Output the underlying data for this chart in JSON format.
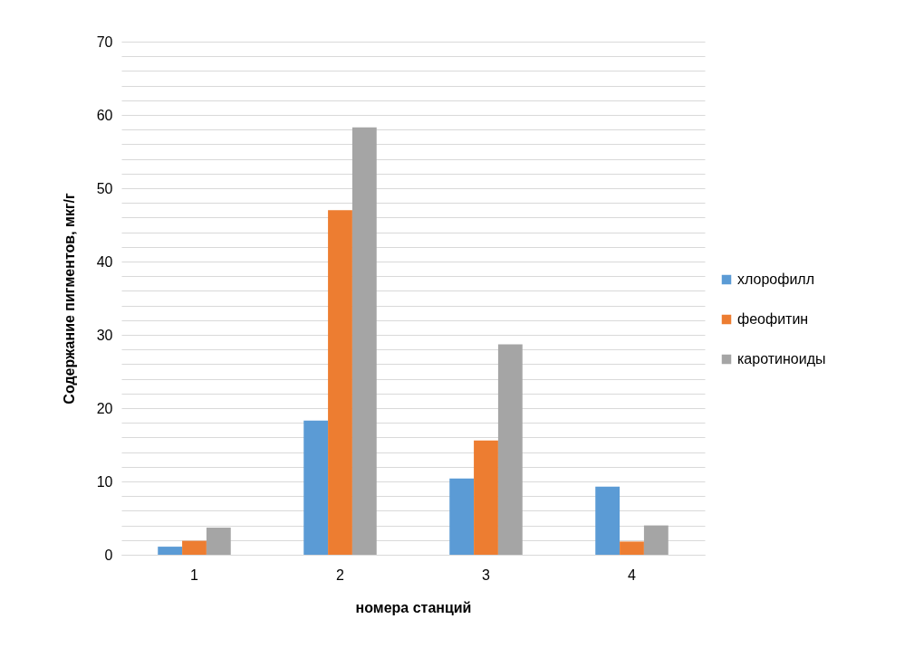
{
  "chart_data": {
    "type": "bar",
    "xlabel": "номера станций",
    "ylabel": "Содержание пигментов, мкг/г",
    "categories": [
      "1",
      "2",
      "3",
      "4"
    ],
    "series": [
      {
        "name": "хлорофилл",
        "color": "#5b9bd5",
        "values": [
          1.1,
          18.3,
          10.4,
          9.3
        ]
      },
      {
        "name": "феофитин",
        "color": "#ed7d31",
        "values": [
          1.9,
          47.0,
          15.6,
          1.8
        ]
      },
      {
        "name": "каротиноиды",
        "color": "#a5a5a5",
        "values": [
          3.7,
          58.3,
          28.7,
          4.0
        ]
      }
    ],
    "ylim": [
      0,
      70
    ],
    "yticks": [
      0,
      {
        "value": 2,
        "label": null
      },
      {
        "value": 4,
        "label": null
      },
      {
        "value": 6,
        "label": null
      },
      {
        "value": 8,
        "label": null
      },
      10,
      {
        "value": 12,
        "label": null
      },
      {
        "value": 14,
        "label": null
      },
      {
        "value": 16,
        "label": null
      },
      {
        "value": 18,
        "label": null
      },
      20,
      {
        "value": 22,
        "label": null
      },
      {
        "value": 24,
        "label": null
      },
      {
        "value": 26,
        "label": null
      },
      {
        "value": 28,
        "label": null
      },
      30,
      {
        "value": 32,
        "label": null
      },
      {
        "value": 34,
        "label": null
      },
      {
        "value": 36,
        "label": null
      },
      {
        "value": 38,
        "label": null
      },
      40,
      {
        "value": 42,
        "label": null
      },
      {
        "value": 44,
        "label": null
      },
      {
        "value": 46,
        "label": null
      },
      {
        "value": 48,
        "label": null
      },
      50,
      {
        "value": 52,
        "label": null
      },
      {
        "value": 54,
        "label": null
      },
      {
        "value": 56,
        "label": null
      },
      {
        "value": 58,
        "label": null
      },
      60,
      {
        "value": 62,
        "label": null
      },
      {
        "value": 64,
        "label": null
      },
      {
        "value": 66,
        "label": null
      },
      {
        "value": 68,
        "label": null
      },
      70
    ],
    "grid": "y",
    "legend": "right"
  }
}
